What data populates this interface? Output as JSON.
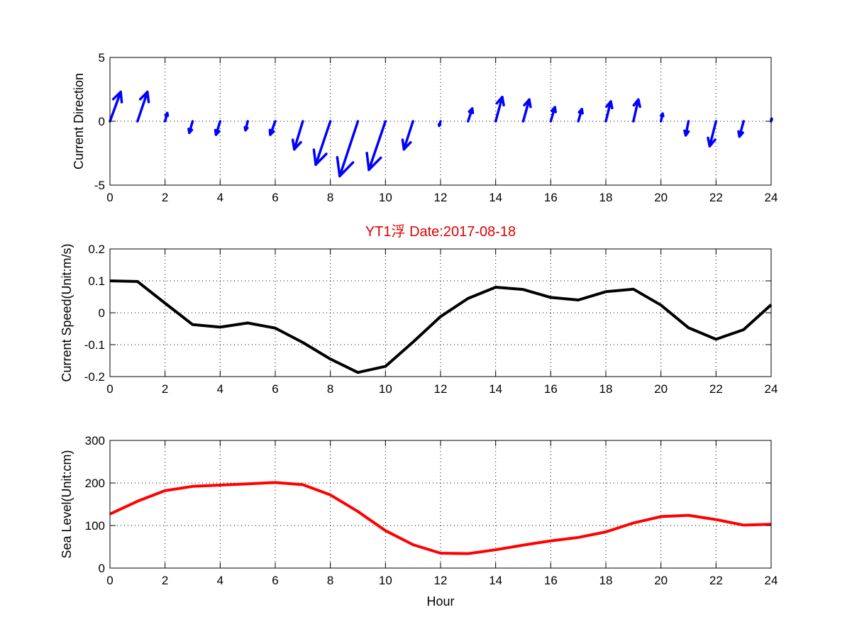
{
  "title": "YT1浮   Date:2017-08-18",
  "colors": {
    "quiver": "#0000ff",
    "speed": "#000000",
    "sea_level": "#ff0000",
    "title": "#e00000"
  },
  "chart_data": [
    {
      "type": "quiver",
      "ylabel": "Current Direction",
      "xlim": [
        0,
        24
      ],
      "ylim": [
        -5,
        5
      ],
      "xticks": [
        0,
        2,
        4,
        6,
        8,
        10,
        12,
        14,
        16,
        18,
        20,
        22,
        24
      ],
      "yticks": [
        -5,
        0,
        5
      ],
      "grid": true,
      "x": [
        0,
        1,
        2,
        3,
        4,
        5,
        6,
        7,
        8,
        9,
        10,
        11,
        12,
        13,
        14,
        15,
        16,
        17,
        18,
        19,
        20,
        21,
        22,
        23,
        24
      ],
      "u": [
        0.39,
        0.36,
        0.08,
        -0.12,
        -0.15,
        -0.08,
        -0.18,
        -0.31,
        -0.53,
        -0.66,
        -0.6,
        -0.33,
        -0.05,
        0.15,
        0.24,
        0.22,
        0.15,
        0.13,
        0.18,
        0.18,
        0.06,
        -0.1,
        -0.23,
        -0.15,
        0.02
      ],
      "v": [
        2.3,
        2.3,
        0.65,
        -0.9,
        -1.05,
        -0.7,
        -1.05,
        -2.2,
        -3.4,
        -4.3,
        -3.8,
        -2.2,
        -0.35,
        1.0,
        1.9,
        1.7,
        1.1,
        0.95,
        1.55,
        1.7,
        0.6,
        -1.1,
        -1.95,
        -1.2,
        0.2
      ]
    },
    {
      "type": "line",
      "ylabel": "Current Speed(Unit:m/s)",
      "xlim": [
        0,
        24
      ],
      "ylim": [
        -0.2,
        0.2
      ],
      "xticks": [
        0,
        2,
        4,
        6,
        8,
        10,
        12,
        14,
        16,
        18,
        20,
        22,
        24
      ],
      "yticks": [
        -0.2,
        -0.1,
        0,
        0.1,
        0.2
      ],
      "grid": true,
      "x": [
        0,
        1,
        2,
        3,
        4,
        5,
        6,
        7,
        8,
        9,
        10,
        11,
        12,
        13,
        14,
        15,
        16,
        17,
        18,
        19,
        20,
        21,
        22,
        23,
        24
      ],
      "y": [
        0.1,
        0.098,
        0.03,
        -0.037,
        -0.045,
        -0.032,
        -0.048,
        -0.093,
        -0.145,
        -0.187,
        -0.168,
        -0.092,
        -0.012,
        0.045,
        0.08,
        0.073,
        0.048,
        0.04,
        0.066,
        0.074,
        0.024,
        -0.047,
        -0.083,
        -0.053,
        0.025
      ]
    },
    {
      "type": "line",
      "xlabel": "Hour",
      "ylabel": "Sea Level(Unit:cm)",
      "xlim": [
        0,
        24
      ],
      "ylim": [
        0,
        300
      ],
      "xticks": [
        0,
        2,
        4,
        6,
        8,
        10,
        12,
        14,
        16,
        18,
        20,
        22,
        24
      ],
      "yticks": [
        0,
        100,
        200,
        300
      ],
      "grid": true,
      "x": [
        0,
        1,
        2,
        3,
        4,
        5,
        6,
        7,
        8,
        9,
        10,
        11,
        12,
        13,
        14,
        15,
        16,
        17,
        18,
        19,
        20,
        21,
        22,
        23,
        24
      ],
      "y": [
        127,
        157,
        182,
        192,
        195,
        198,
        201,
        196,
        172,
        133,
        88,
        55,
        35,
        34,
        43,
        54,
        64,
        72,
        85,
        106,
        121,
        124,
        114,
        101,
        103
      ]
    }
  ]
}
